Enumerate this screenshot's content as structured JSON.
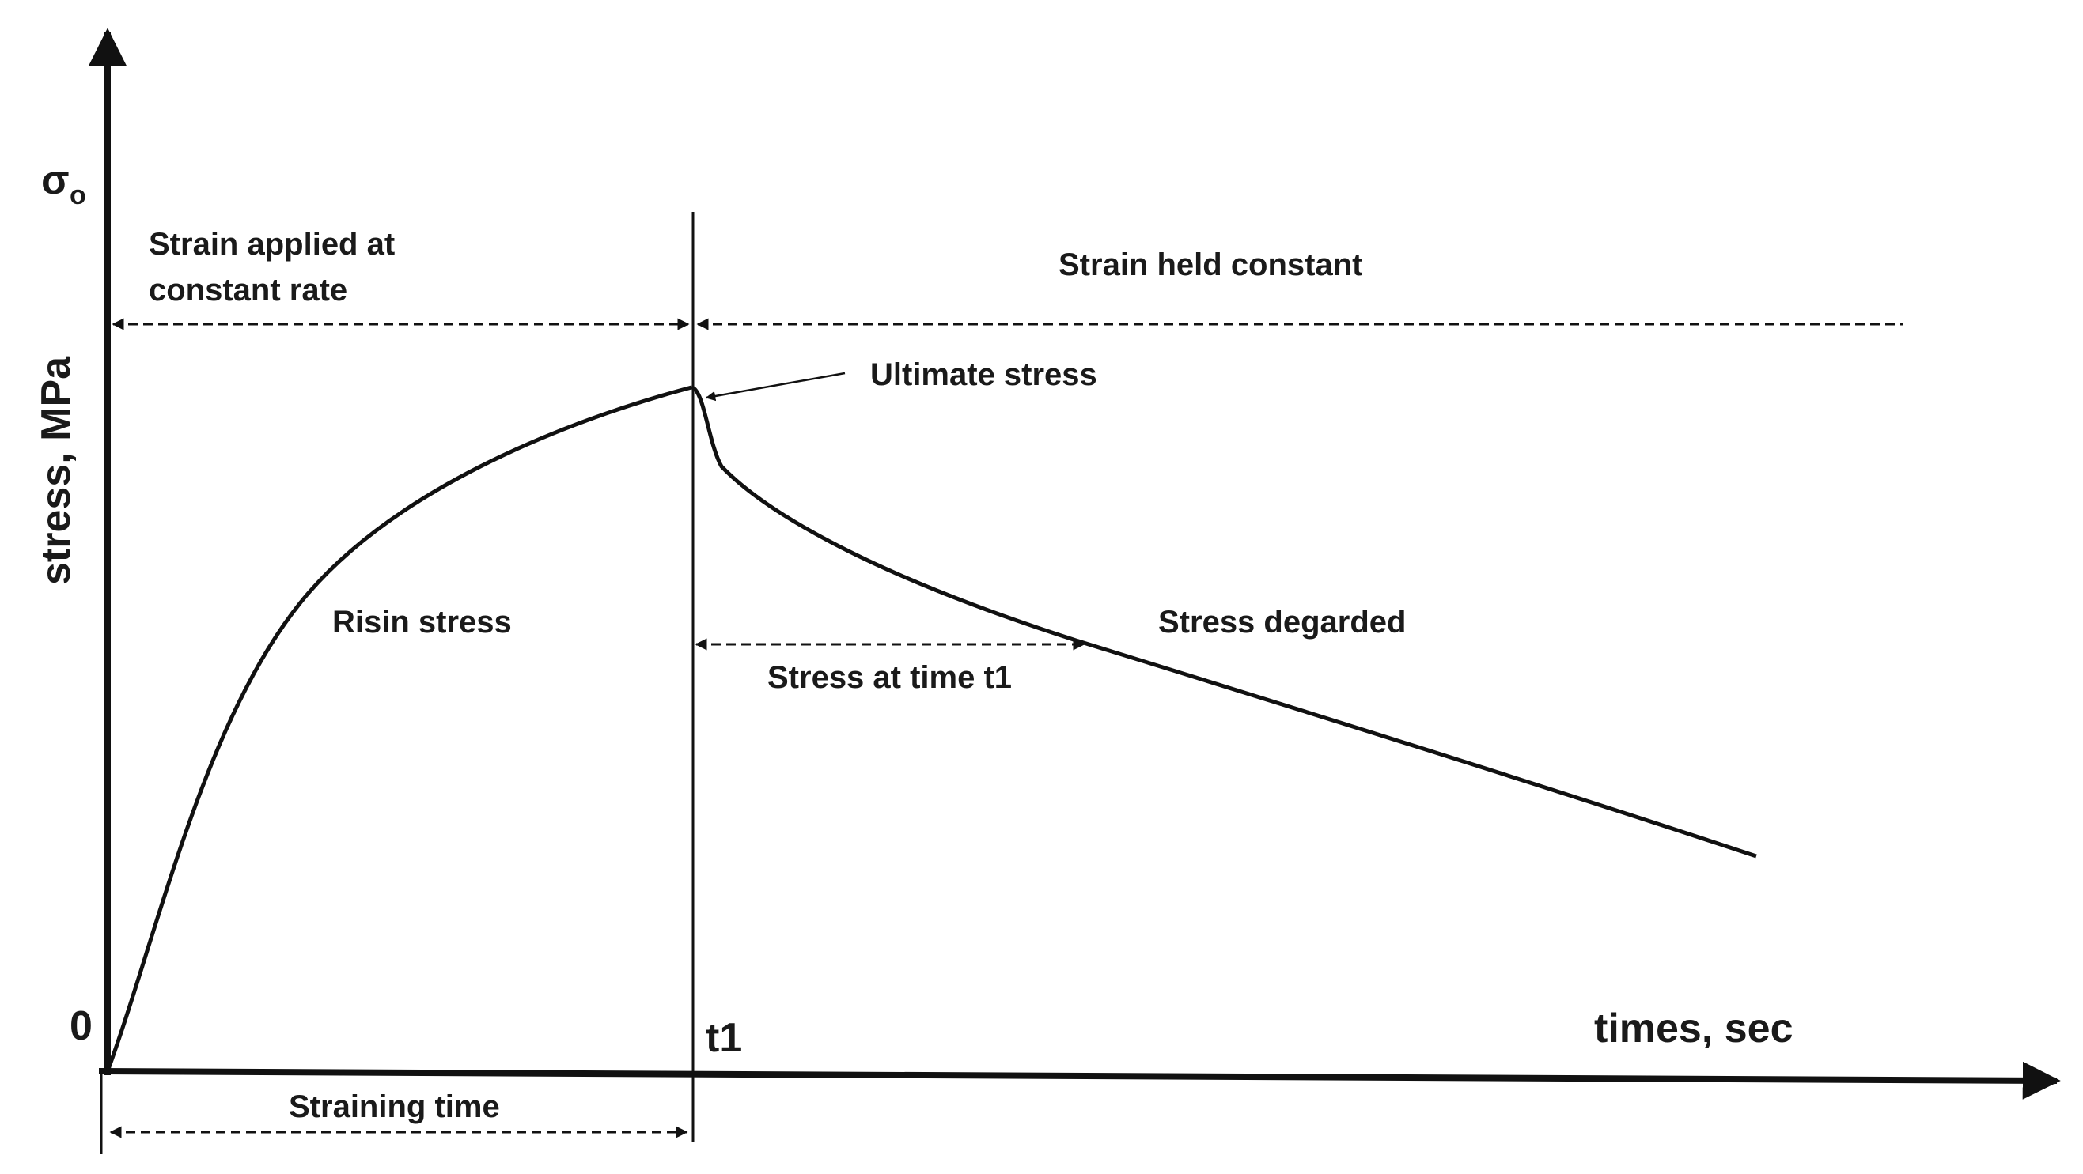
{
  "diagram": {
    "y_axis_symbol": "σ",
    "y_axis_symbol_sub": "o",
    "y_axis_label": "stress, MPa",
    "x_axis_label": "times, sec",
    "origin_label": "0",
    "t1_label": "t1",
    "phase_left_line1": "Strain applied at",
    "phase_left_line2": "constant rate",
    "phase_right": "Strain held constant",
    "peak_label": "Ultimate stress",
    "rising_label": "Risin stress",
    "falling_label": "Stress degarded",
    "stress_at_t1_label": "Stress at time t1",
    "straining_time_label": "Straining time"
  },
  "colors": {
    "line": "#111111",
    "text": "#1a1a1a",
    "background": "#ffffff"
  }
}
